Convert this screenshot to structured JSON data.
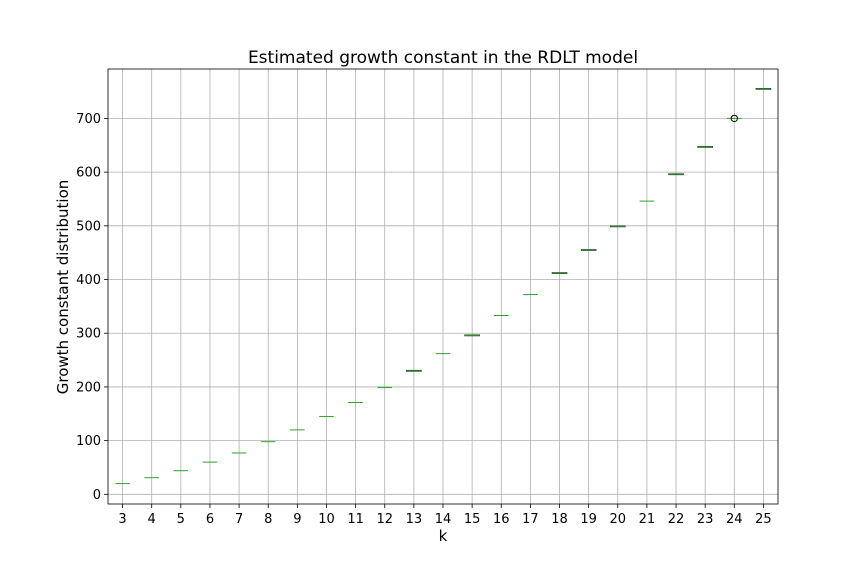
{
  "chart_data": {
    "type": "box",
    "title": "Estimated growth constant in the RDLT model",
    "xlabel": "k",
    "ylabel": "Growth constant distribution",
    "ylim": [
      -18,
      792
    ],
    "yticks": [
      0,
      100,
      200,
      300,
      400,
      500,
      600,
      700
    ],
    "grid": true,
    "categories": [
      "3",
      "4",
      "5",
      "6",
      "7",
      "8",
      "9",
      "10",
      "11",
      "12",
      "13",
      "14",
      "15",
      "16",
      "17",
      "18",
      "19",
      "20",
      "21",
      "22",
      "23",
      "24",
      "25"
    ],
    "boxes": [
      {
        "median": 20,
        "q1": 20,
        "q3": 20
      },
      {
        "median": 31,
        "q1": 31,
        "q3": 31
      },
      {
        "median": 44,
        "q1": 44,
        "q3": 44
      },
      {
        "median": 60,
        "q1": 60,
        "q3": 60
      },
      {
        "median": 77,
        "q1": 77,
        "q3": 77
      },
      {
        "median": 98,
        "q1": 98,
        "q3": 98
      },
      {
        "median": 120,
        "q1": 120,
        "q3": 120
      },
      {
        "median": 145,
        "q1": 145,
        "q3": 145
      },
      {
        "median": 171,
        "q1": 171,
        "q3": 171
      },
      {
        "median": 199,
        "q1": 199,
        "q3": 199
      },
      {
        "median": 230,
        "q1": 229.3,
        "q3": 230.7
      },
      {
        "median": 262,
        "q1": 262,
        "q3": 262
      },
      {
        "median": 296,
        "q1": 295.3,
        "q3": 296.7
      },
      {
        "median": 333,
        "q1": 333,
        "q3": 333
      },
      {
        "median": 372,
        "q1": 372,
        "q3": 372
      },
      {
        "median": 412,
        "q1": 411.3,
        "q3": 412.7
      },
      {
        "median": 455,
        "q1": 454.3,
        "q3": 455.7
      },
      {
        "median": 499,
        "q1": 498.3,
        "q3": 499.7
      },
      {
        "median": 546,
        "q1": 546,
        "q3": 546
      },
      {
        "median": 596,
        "q1": 595.3,
        "q3": 596.7
      },
      {
        "median": 647,
        "q1": 646.3,
        "q3": 647.7
      },
      {
        "median": 700,
        "q1": 700,
        "q3": 700,
        "outliers": [
          700
        ]
      },
      {
        "median": 755,
        "q1": 754.3,
        "q3": 755.7
      }
    ],
    "colors": {
      "median": "#2ca02c",
      "box": "#1f1f1f",
      "grid": "#b0b0b0"
    }
  }
}
